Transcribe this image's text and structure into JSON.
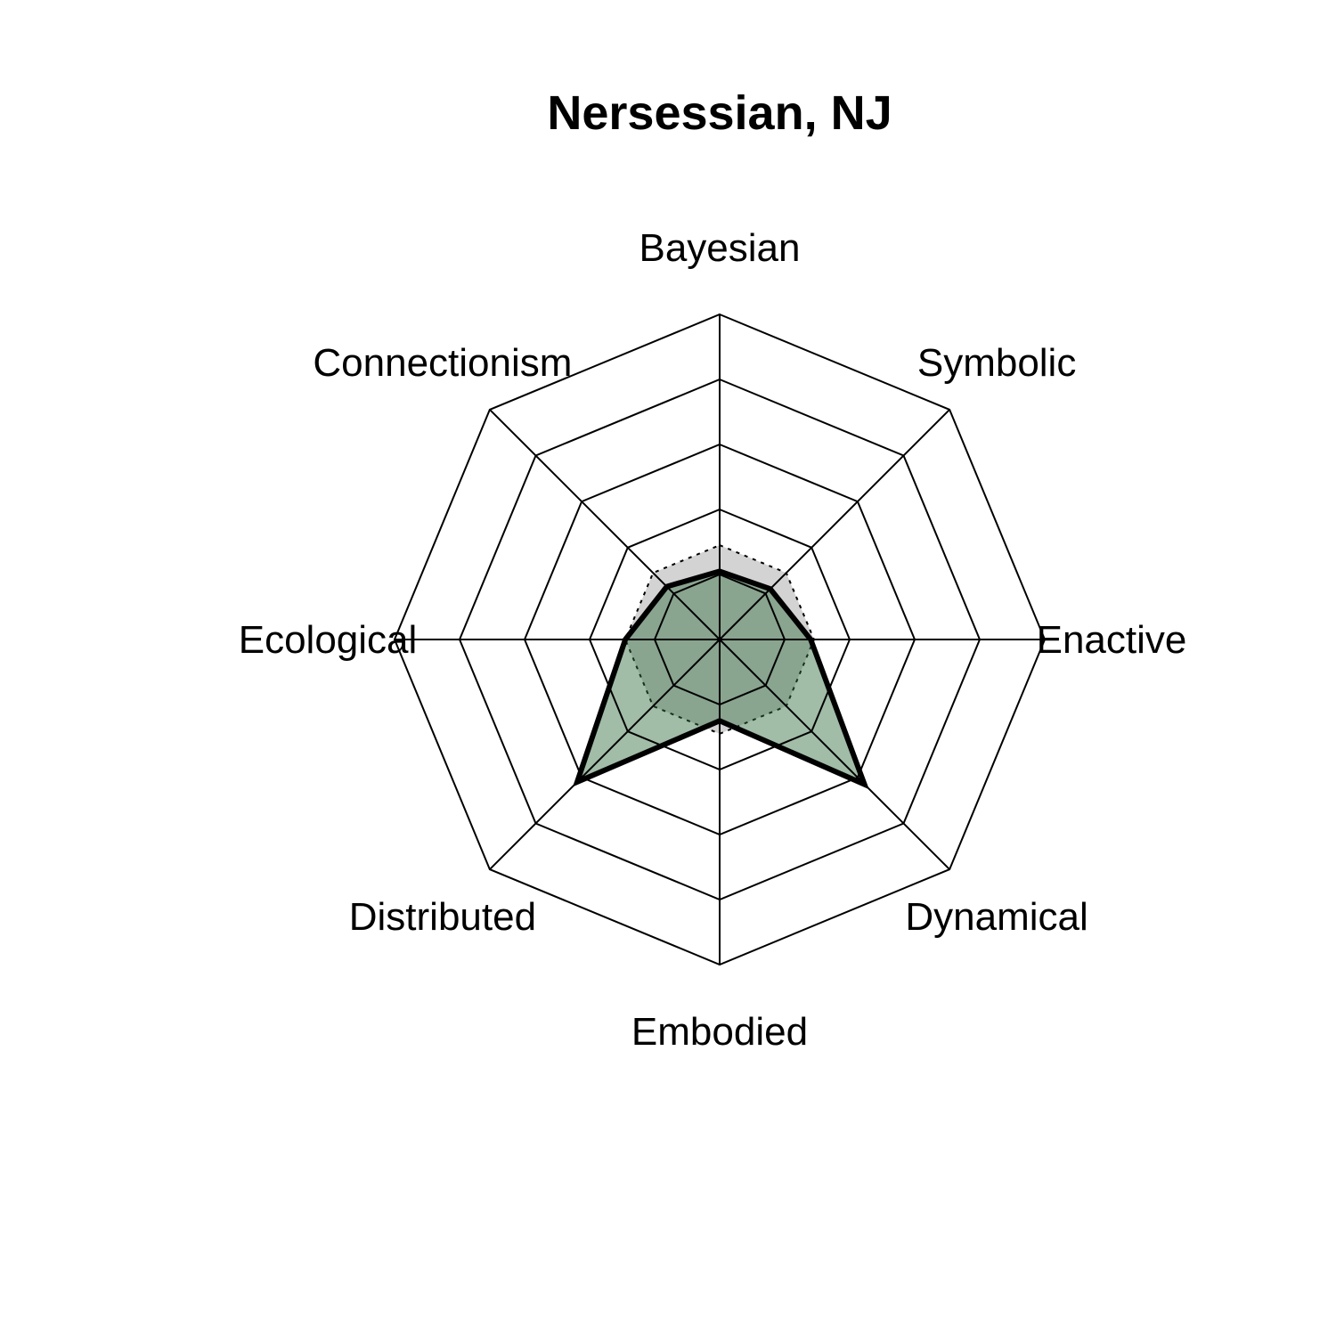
{
  "chart_data": {
    "type": "radar",
    "title": "Nersessian, NJ",
    "axes": [
      "Bayesian",
      "Symbolic",
      "Enactive",
      "Dynamical",
      "Embodied",
      "Distributed",
      "Ecological",
      "Connectionism"
    ],
    "range": [
      0,
      5
    ],
    "rings": 5,
    "series": [
      {
        "role": "reference",
        "values": [
          1.45,
          1.45,
          1.45,
          1.45,
          1.45,
          1.45,
          1.45,
          1.45
        ],
        "fill": "#d3d3d3",
        "stroke": "#000000",
        "line_style": "dotted"
      },
      {
        "role": "subject",
        "values": [
          1.05,
          1.1,
          1.4,
          3.15,
          1.25,
          3.1,
          1.45,
          1.15
        ],
        "fill": "#2e6b3c",
        "fill_opacity": 0.45,
        "stroke": "#000000",
        "line_style": "solid"
      }
    ]
  }
}
